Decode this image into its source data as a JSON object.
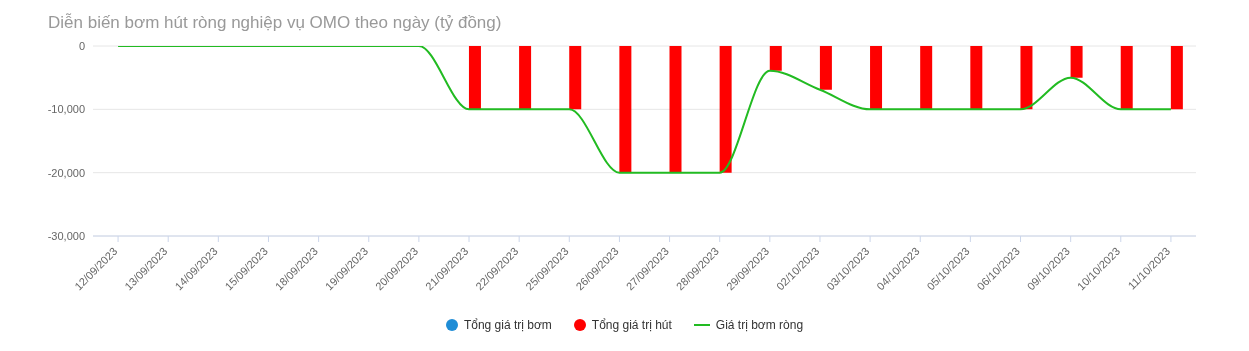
{
  "chart_data": {
    "type": "bar",
    "title": "Diễn biến bơm hút ròng nghiệp vụ OMO theo ngày (tỷ đồng)",
    "categories": [
      "12/09/2023",
      "13/09/2023",
      "14/09/2023",
      "15/09/2023",
      "18/09/2023",
      "19/09/2023",
      "20/09/2023",
      "21/09/2023",
      "22/09/2023",
      "25/09/2023",
      "26/09/2023",
      "27/09/2023",
      "28/09/2023",
      "29/09/2023",
      "02/10/2023",
      "03/10/2023",
      "04/10/2023",
      "05/10/2023",
      "06/10/2023",
      "09/10/2023",
      "10/10/2023",
      "11/10/2023"
    ],
    "series": [
      {
        "name": "Tổng giá trị bơm",
        "color": "#1f8dd6",
        "values": [
          0,
          0,
          0,
          0,
          0,
          0,
          0,
          0,
          0,
          0,
          0,
          0,
          0,
          0,
          0,
          0,
          0,
          0,
          0,
          0,
          0,
          0
        ]
      },
      {
        "name": "Tổng giá trị hút",
        "color": "#ff0000",
        "values": [
          0,
          0,
          0,
          0,
          0,
          0,
          0,
          -10000,
          -10000,
          -10000,
          -20000,
          -20000,
          -20000,
          -3900,
          -6900,
          -10000,
          -10000,
          -10000,
          -10000,
          -5000,
          -10000,
          -10000
        ]
      },
      {
        "name": "Giá trị bơm ròng",
        "type": "line",
        "color": "#22bb22",
        "values": [
          0,
          0,
          0,
          0,
          0,
          0,
          0,
          -10000,
          -10000,
          -10000,
          -20000,
          -20000,
          -20000,
          -3900,
          -6900,
          -10000,
          -10000,
          -10000,
          -10000,
          -5000,
          -10000,
          -10000
        ]
      }
    ],
    "ylim": [
      -30000,
      0
    ],
    "yticks": [
      {
        "value": -30000,
        "label": "-30,000"
      },
      {
        "value": -20000,
        "label": "-20,000"
      },
      {
        "value": -10000,
        "label": "-10,000"
      },
      0
    ],
    "grid": "y",
    "legend": "bottom"
  }
}
